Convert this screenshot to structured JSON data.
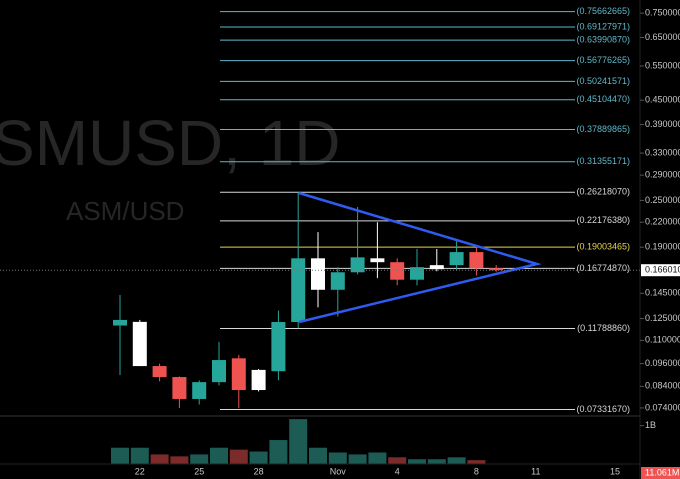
{
  "chart_data": {
    "type": "candlestick",
    "watermark": "SMUSD, 1D",
    "watermark_subtitle": "ASM/USD",
    "log_scale": true,
    "ylim": [
      0.071,
      0.81
    ],
    "yticks": [
      {
        "value": 0.75,
        "label": "0.75000000"
      },
      {
        "value": 0.65,
        "label": "0.65000000"
      },
      {
        "value": 0.55,
        "label": "0.55000000"
      },
      {
        "value": 0.45,
        "label": "0.45000000"
      },
      {
        "value": 0.39,
        "label": "0.39000000"
      },
      {
        "value": 0.33,
        "label": "0.33000000"
      },
      {
        "value": 0.29,
        "label": "0.29000000"
      },
      {
        "value": 0.25,
        "label": "0.25000000"
      },
      {
        "value": 0.22,
        "label": "0.22000000"
      },
      {
        "value": 0.19,
        "label": "0.19000000"
      },
      {
        "value": 0.145,
        "label": "0.14500000"
      },
      {
        "value": 0.125,
        "label": "0.12500000"
      },
      {
        "value": 0.11,
        "label": "0.11000000"
      },
      {
        "value": 0.096,
        "label": "0.09600000"
      },
      {
        "value": 0.084,
        "label": "0.08400000"
      },
      {
        "value": 0.074,
        "label": "0.07400000"
      }
    ],
    "last_price": {
      "value": 0.16601,
      "label": "0.16601000"
    },
    "levels": [
      {
        "value": 0.75662665,
        "label": "(0.75662665)",
        "color": "#5fb8c9"
      },
      {
        "value": 0.69127971,
        "label": "(0.69127971)",
        "color": "#5fb8c9"
      },
      {
        "value": 0.6399087,
        "label": "(0.63990870)",
        "color": "#5fb8c9"
      },
      {
        "value": 0.56776265,
        "label": "(0.56776265)",
        "color": "#5fb8c9"
      },
      {
        "value": 0.50241571,
        "label": "(0.50241571)",
        "color": "#5fb8c9"
      },
      {
        "value": 0.4510447,
        "label": "(0.45104470)",
        "color": "#5fb8c9"
      },
      {
        "value": 0.37889865,
        "label": "(0.37889865)",
        "color": "#5fb8c9"
      },
      {
        "value": 0.31355171,
        "label": "(0.31355171)",
        "color": "#5fb8c9"
      },
      {
        "value": 0.2621807,
        "label": "(0.26218070)",
        "color": "#d8d8d8"
      },
      {
        "value": 0.2217638,
        "label": "(0.22176380)",
        "color": "#d8d8d8"
      },
      {
        "value": 0.19003465,
        "label": "(0.19003465)",
        "color": "#e8d44d"
      },
      {
        "value": 0.1677487,
        "label": "(0.16774870)",
        "color": "#d8d8d8"
      },
      {
        "value": 0.1178886,
        "label": "(0.11788860)",
        "color": "#d8d8d8"
      },
      {
        "value": 0.0733167,
        "label": "(0.07331670)",
        "color": "#d8d8d8"
      }
    ],
    "categories": [
      null,
      "22",
      null,
      null,
      "25",
      null,
      null,
      "28",
      null,
      null,
      null,
      "Nov",
      null,
      null,
      "4",
      null,
      null,
      null,
      "8",
      null,
      null,
      "11",
      null,
      null,
      null,
      "15"
    ],
    "open": [
      0.12,
      0.1226,
      0.0946,
      0.0887,
      0.078,
      0.0861,
      0.099,
      0.0822,
      0.0918,
      0.1225,
      0.178,
      0.148,
      0.164,
      0.178,
      0.174,
      0.157,
      0.167,
      0.171,
      0.1846,
      0.168,
      null,
      null,
      null,
      null,
      null,
      null
    ],
    "high": [
      0.1435,
      0.124,
      0.096,
      0.089,
      0.087,
      0.109,
      0.101,
      0.093,
      0.131,
      0.2622,
      0.2075,
      0.169,
      0.2405,
      0.22,
      0.178,
      0.188,
      0.188,
      0.197,
      0.192,
      0.171,
      null,
      null,
      null,
      null,
      null,
      null
    ],
    "low": [
      0.0898,
      0.0946,
      0.0865,
      0.074,
      0.0755,
      0.0845,
      0.074,
      0.0815,
      0.087,
      0.118,
      0.1335,
      0.1265,
      0.162,
      0.1585,
      0.152,
      0.152,
      0.165,
      0.166,
      0.161,
      0.1645,
      null,
      null,
      null,
      null,
      null,
      null
    ],
    "close": [
      0.124,
      0.0946,
      0.0887,
      0.078,
      0.0861,
      0.098,
      0.0822,
      0.0925,
      0.1225,
      0.178,
      0.148,
      0.164,
      0.179,
      0.174,
      0.157,
      0.169,
      0.171,
      0.1846,
      0.168,
      0.166,
      null,
      null,
      null,
      null,
      null,
      null
    ],
    "colors": [
      "#26a69a",
      "#ffffff",
      "#ef5350",
      "#ef5350",
      "#26a69a",
      "#26a69a",
      "#ef5350",
      "#ffffff",
      "#26a69a",
      "#26a69a",
      "#ffffff",
      "#26a69a",
      "#26a69a",
      "#ffffff",
      "#ef5350",
      "#26a69a",
      "#ffffff",
      "#26a69a",
      "#ef5350",
      "#ef5350",
      null,
      null,
      null,
      null,
      null,
      null
    ],
    "volume": [
      425000000,
      425000000,
      250000000,
      200000000,
      250000000,
      425000000,
      375000000,
      325000000,
      625000000,
      1170000000,
      425000000,
      300000000,
      250000000,
      300000000,
      175000000,
      125000000,
      125000000,
      175000000,
      100000000,
      11061000,
      null,
      null,
      null,
      null,
      null,
      null
    ],
    "volume_value_labels": [
      null,
      null,
      null,
      null,
      null,
      null,
      null,
      null,
      null,
      null,
      null,
      null,
      null,
      null,
      null,
      null,
      null,
      null,
      null,
      "11.061M",
      null,
      null,
      null,
      null,
      null,
      null
    ],
    "vlim": [
      0,
      1200000000
    ],
    "vticks": [
      {
        "value": 1000000000,
        "label": "1B"
      }
    ]
  }
}
